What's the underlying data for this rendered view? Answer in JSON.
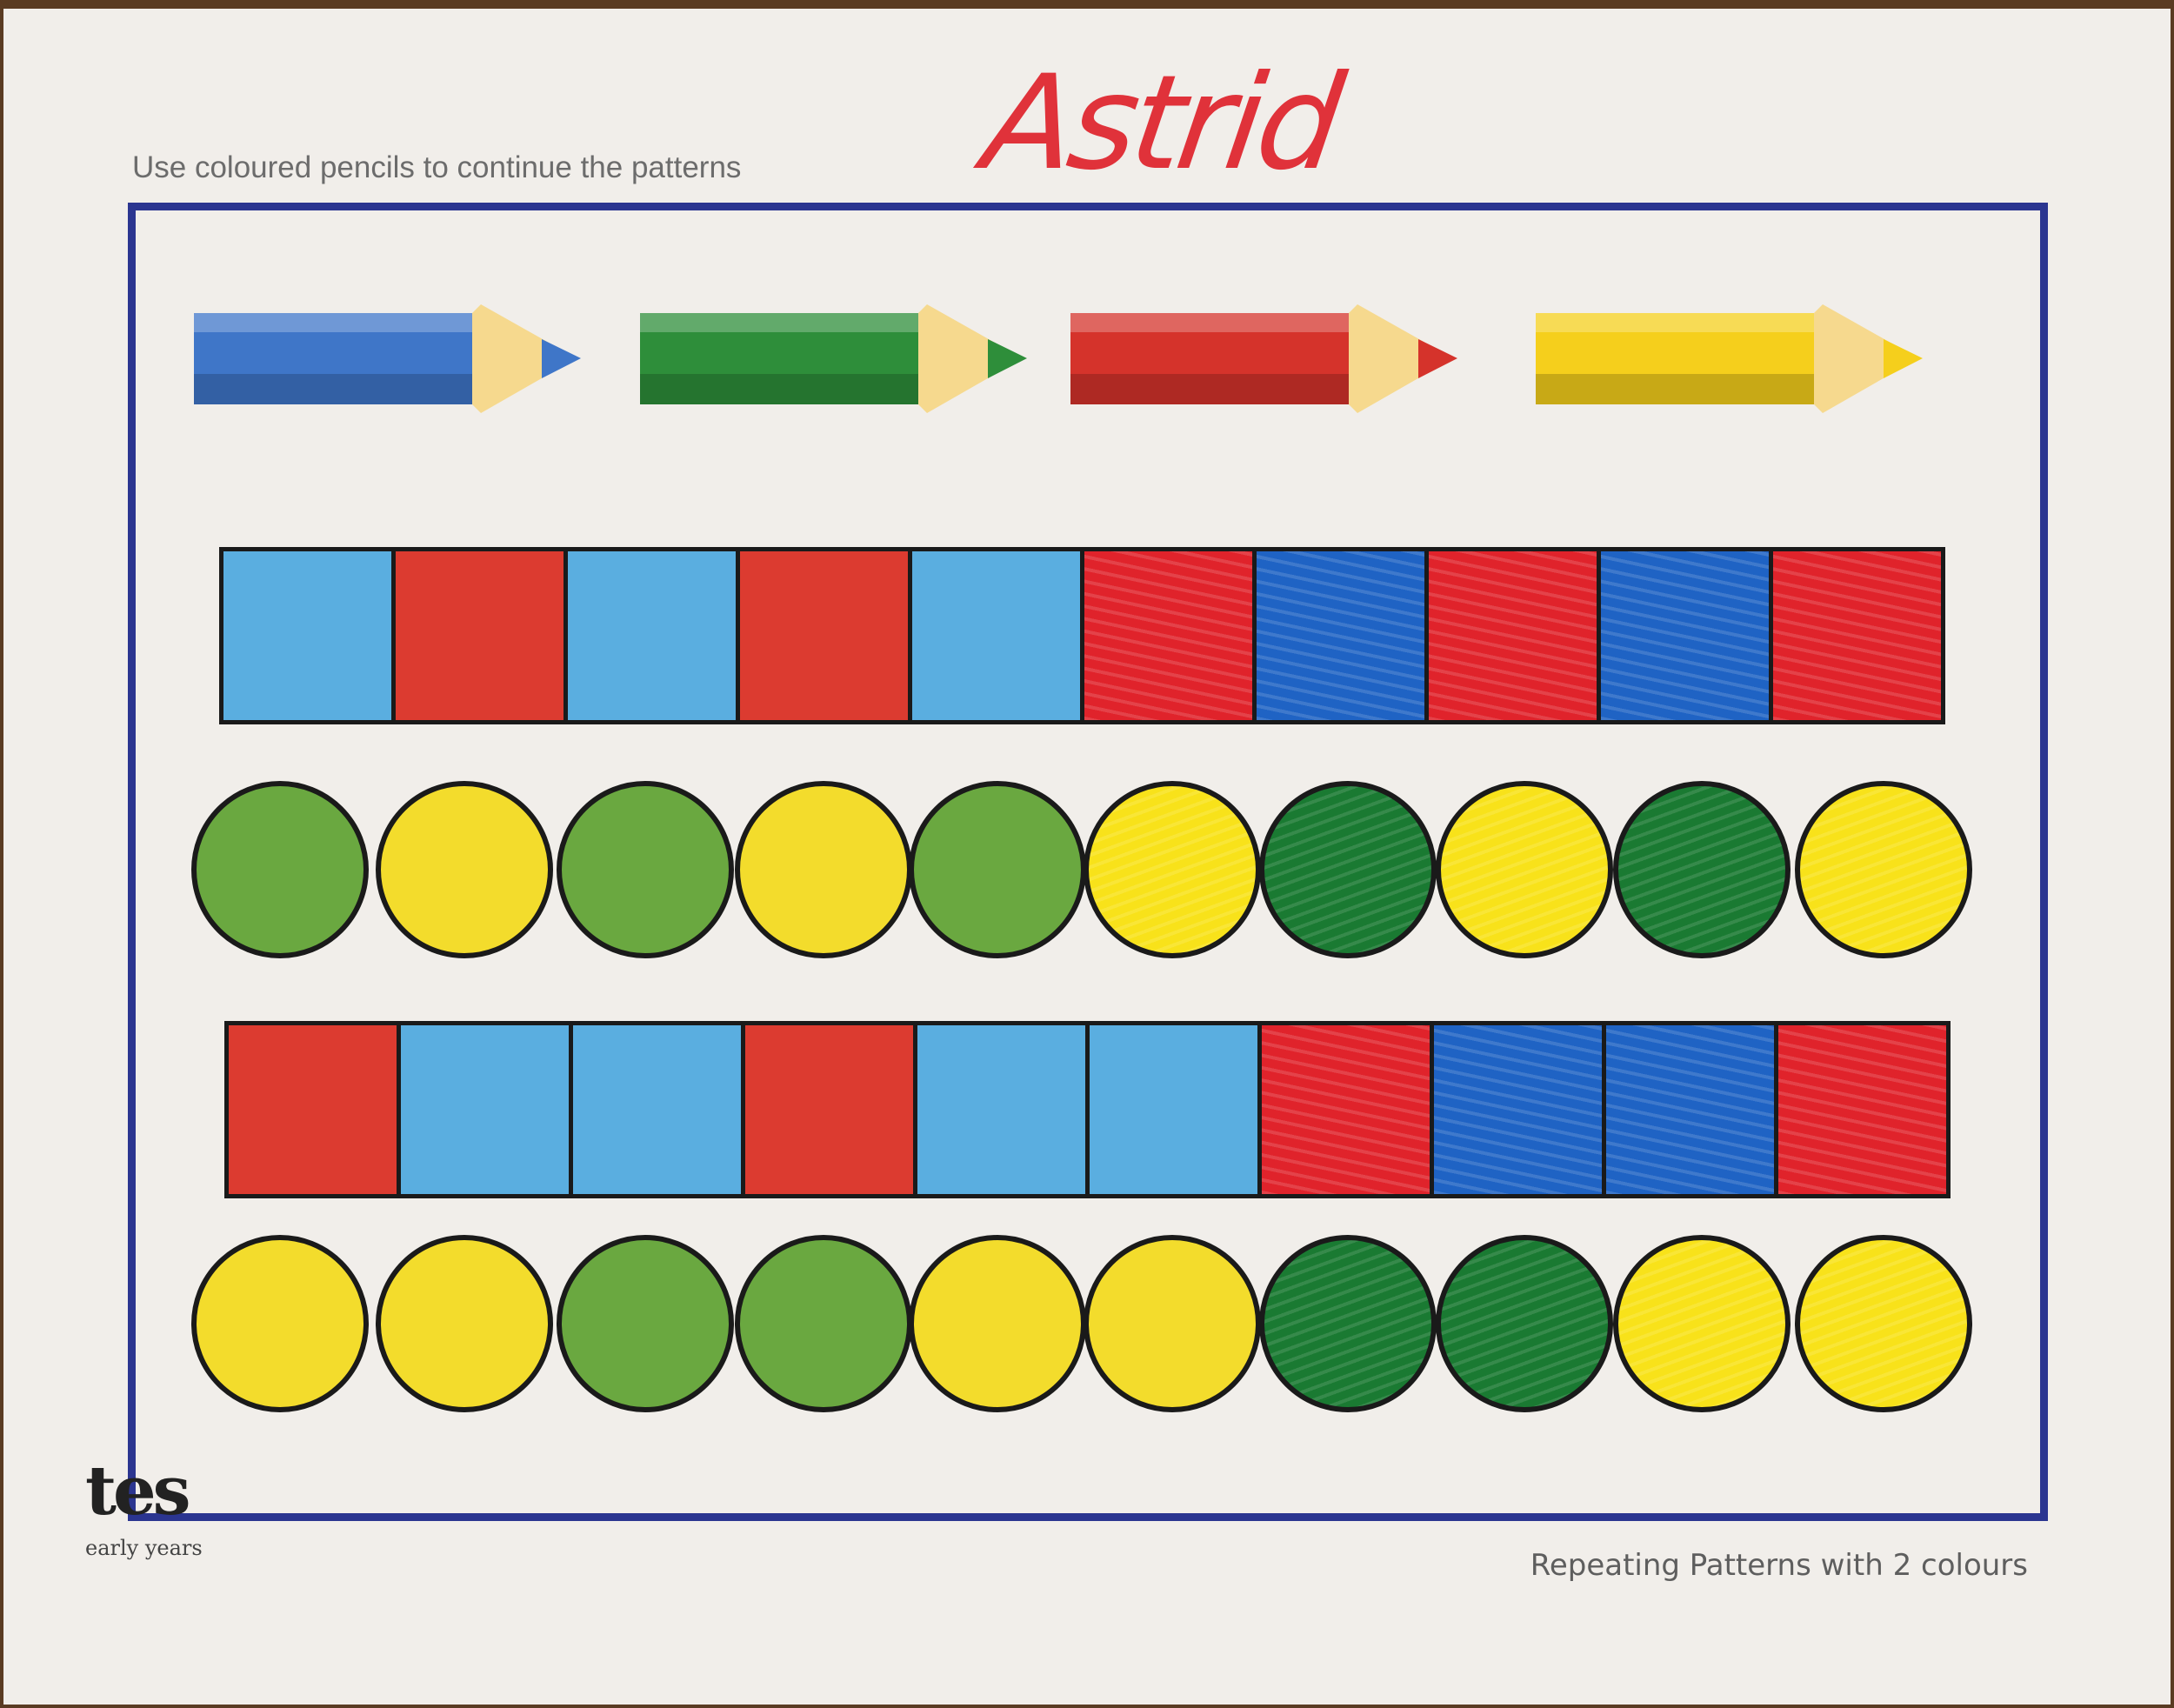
{
  "header": {
    "instruction": "Use coloured pencils to continue the patterns",
    "handwritten_name": "Astrid"
  },
  "footer": {
    "title": "Repeating Patterns with 2 colours",
    "logo_text": "tes",
    "logo_subtext": "early years"
  },
  "colors": {
    "frame": "#2b3590",
    "light_blue": "#5aaee0",
    "red": "#dc3b30",
    "marker_red": "#e0232b",
    "marker_blue": "#1f63c4",
    "green": "#6aa840",
    "dark_green": "#1a7a32",
    "yellow": "#f3dc2c",
    "marker_yellow": "#f8e21a"
  },
  "pencils": [
    {
      "color": "blue",
      "hex": "#3f76c8"
    },
    {
      "color": "green",
      "hex": "#2e8e3a"
    },
    {
      "color": "red",
      "hex": "#d5332b"
    },
    {
      "color": "yellow",
      "hex": "#f5cf1c"
    }
  ],
  "rows": [
    {
      "shape": "square",
      "cells": [
        {
          "color": "light_blue",
          "fill": "printed"
        },
        {
          "color": "red",
          "fill": "printed"
        },
        {
          "color": "light_blue",
          "fill": "printed"
        },
        {
          "color": "red",
          "fill": "printed"
        },
        {
          "color": "light_blue",
          "fill": "printed"
        },
        {
          "color": "marker_red",
          "fill": "hand-coloured"
        },
        {
          "color": "marker_blue",
          "fill": "hand-coloured"
        },
        {
          "color": "marker_red",
          "fill": "hand-coloured"
        },
        {
          "color": "marker_blue",
          "fill": "hand-coloured"
        },
        {
          "color": "marker_red",
          "fill": "hand-coloured"
        }
      ]
    },
    {
      "shape": "circle",
      "cells": [
        {
          "color": "green",
          "fill": "printed"
        },
        {
          "color": "yellow",
          "fill": "printed"
        },
        {
          "color": "green",
          "fill": "printed"
        },
        {
          "color": "yellow",
          "fill": "printed"
        },
        {
          "color": "green",
          "fill": "printed"
        },
        {
          "color": "marker_yellow",
          "fill": "hand-coloured"
        },
        {
          "color": "dark_green",
          "fill": "hand-coloured"
        },
        {
          "color": "marker_yellow",
          "fill": "hand-coloured"
        },
        {
          "color": "dark_green",
          "fill": "hand-coloured"
        },
        {
          "color": "marker_yellow",
          "fill": "hand-coloured"
        }
      ]
    },
    {
      "shape": "square",
      "cells": [
        {
          "color": "red",
          "fill": "printed"
        },
        {
          "color": "light_blue",
          "fill": "printed"
        },
        {
          "color": "light_blue",
          "fill": "printed"
        },
        {
          "color": "red",
          "fill": "printed"
        },
        {
          "color": "light_blue",
          "fill": "printed"
        },
        {
          "color": "light_blue",
          "fill": "printed"
        },
        {
          "color": "marker_red",
          "fill": "hand-coloured"
        },
        {
          "color": "marker_blue",
          "fill": "hand-coloured"
        },
        {
          "color": "marker_blue",
          "fill": "hand-coloured"
        },
        {
          "color": "marker_red",
          "fill": "hand-coloured"
        }
      ]
    },
    {
      "shape": "circle",
      "cells": [
        {
          "color": "yellow",
          "fill": "printed"
        },
        {
          "color": "yellow",
          "fill": "printed"
        },
        {
          "color": "green",
          "fill": "printed"
        },
        {
          "color": "green",
          "fill": "printed"
        },
        {
          "color": "yellow",
          "fill": "printed"
        },
        {
          "color": "yellow",
          "fill": "printed"
        },
        {
          "color": "dark_green",
          "fill": "hand-coloured"
        },
        {
          "color": "dark_green",
          "fill": "hand-coloured"
        },
        {
          "color": "marker_yellow",
          "fill": "hand-coloured"
        },
        {
          "color": "marker_yellow",
          "fill": "hand-coloured"
        }
      ]
    }
  ]
}
